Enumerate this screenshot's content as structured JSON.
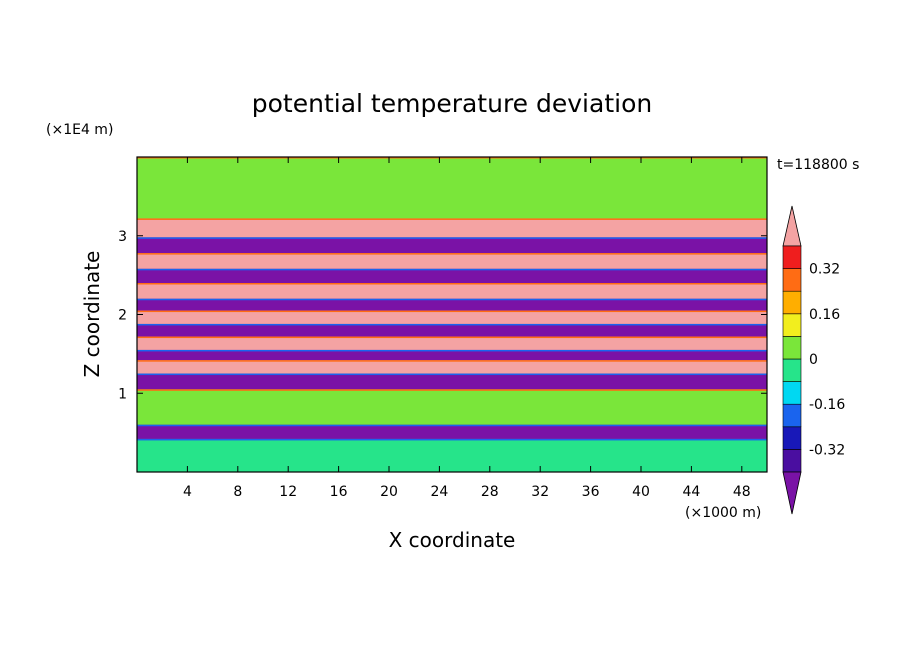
{
  "chart_data": {
    "type": "heatmap",
    "title": "potential temperature deviation",
    "xlabel": "X coordinate",
    "ylabel": "Z coordinate",
    "x_unit": "(×1000 m)",
    "y_unit": "(×1E4 m)",
    "time_label": "t=118800 s",
    "xlim": [
      0,
      50
    ],
    "ylim": [
      0,
      4
    ],
    "x_ticks": [
      4,
      8,
      12,
      16,
      20,
      24,
      28,
      32,
      36,
      40,
      44,
      48
    ],
    "y_ticks": [
      1,
      2,
      3
    ],
    "colorbar": {
      "levels": [
        -0.4,
        -0.32,
        -0.24,
        -0.16,
        -0.08,
        0,
        0.08,
        0.16,
        0.24,
        0.32,
        0.4
      ],
      "tick_labels": [
        "-0.32",
        "-0.16",
        "0",
        "0.16",
        "0.32"
      ],
      "tick_values": [
        -0.32,
        -0.16,
        0,
        0.16,
        0.32
      ],
      "over_color": "#f4a3a3",
      "under_color": "#7a12a6",
      "colors": [
        "#4a0ea0",
        "#1818b8",
        "#1a64ee",
        "#00d8f2",
        "#26e48a",
        "#7ae63a",
        "#f2ee1e",
        "#ffae00",
        "#ff6c14",
        "#ef1e1e"
      ]
    },
    "bands": [
      {
        "z": [
          3.22,
          4.0
        ],
        "value": 0.03
      },
      {
        "z": [
          2.98,
          3.22
        ],
        "value": 0.45
      },
      {
        "z": [
          2.78,
          2.98
        ],
        "value": -0.45
      },
      {
        "z": [
          2.58,
          2.78
        ],
        "value": 0.45
      },
      {
        "z": [
          2.4,
          2.58
        ],
        "value": -0.45
      },
      {
        "z": [
          2.2,
          2.4
        ],
        "value": 0.45
      },
      {
        "z": [
          2.05,
          2.2
        ],
        "value": -0.45
      },
      {
        "z": [
          1.88,
          2.05
        ],
        "value": 0.45
      },
      {
        "z": [
          1.72,
          1.88
        ],
        "value": -0.45
      },
      {
        "z": [
          1.55,
          1.72
        ],
        "value": 0.45
      },
      {
        "z": [
          1.42,
          1.55
        ],
        "value": -0.45
      },
      {
        "z": [
          1.25,
          1.42
        ],
        "value": 0.45
      },
      {
        "z": [
          1.05,
          1.25
        ],
        "value": -0.45
      },
      {
        "z": [
          0.6,
          1.05
        ],
        "value": 0.05
      },
      {
        "z": [
          0.42,
          0.6
        ],
        "value": -0.45
      },
      {
        "z": [
          0.0,
          0.42
        ],
        "value": -0.05
      }
    ]
  }
}
